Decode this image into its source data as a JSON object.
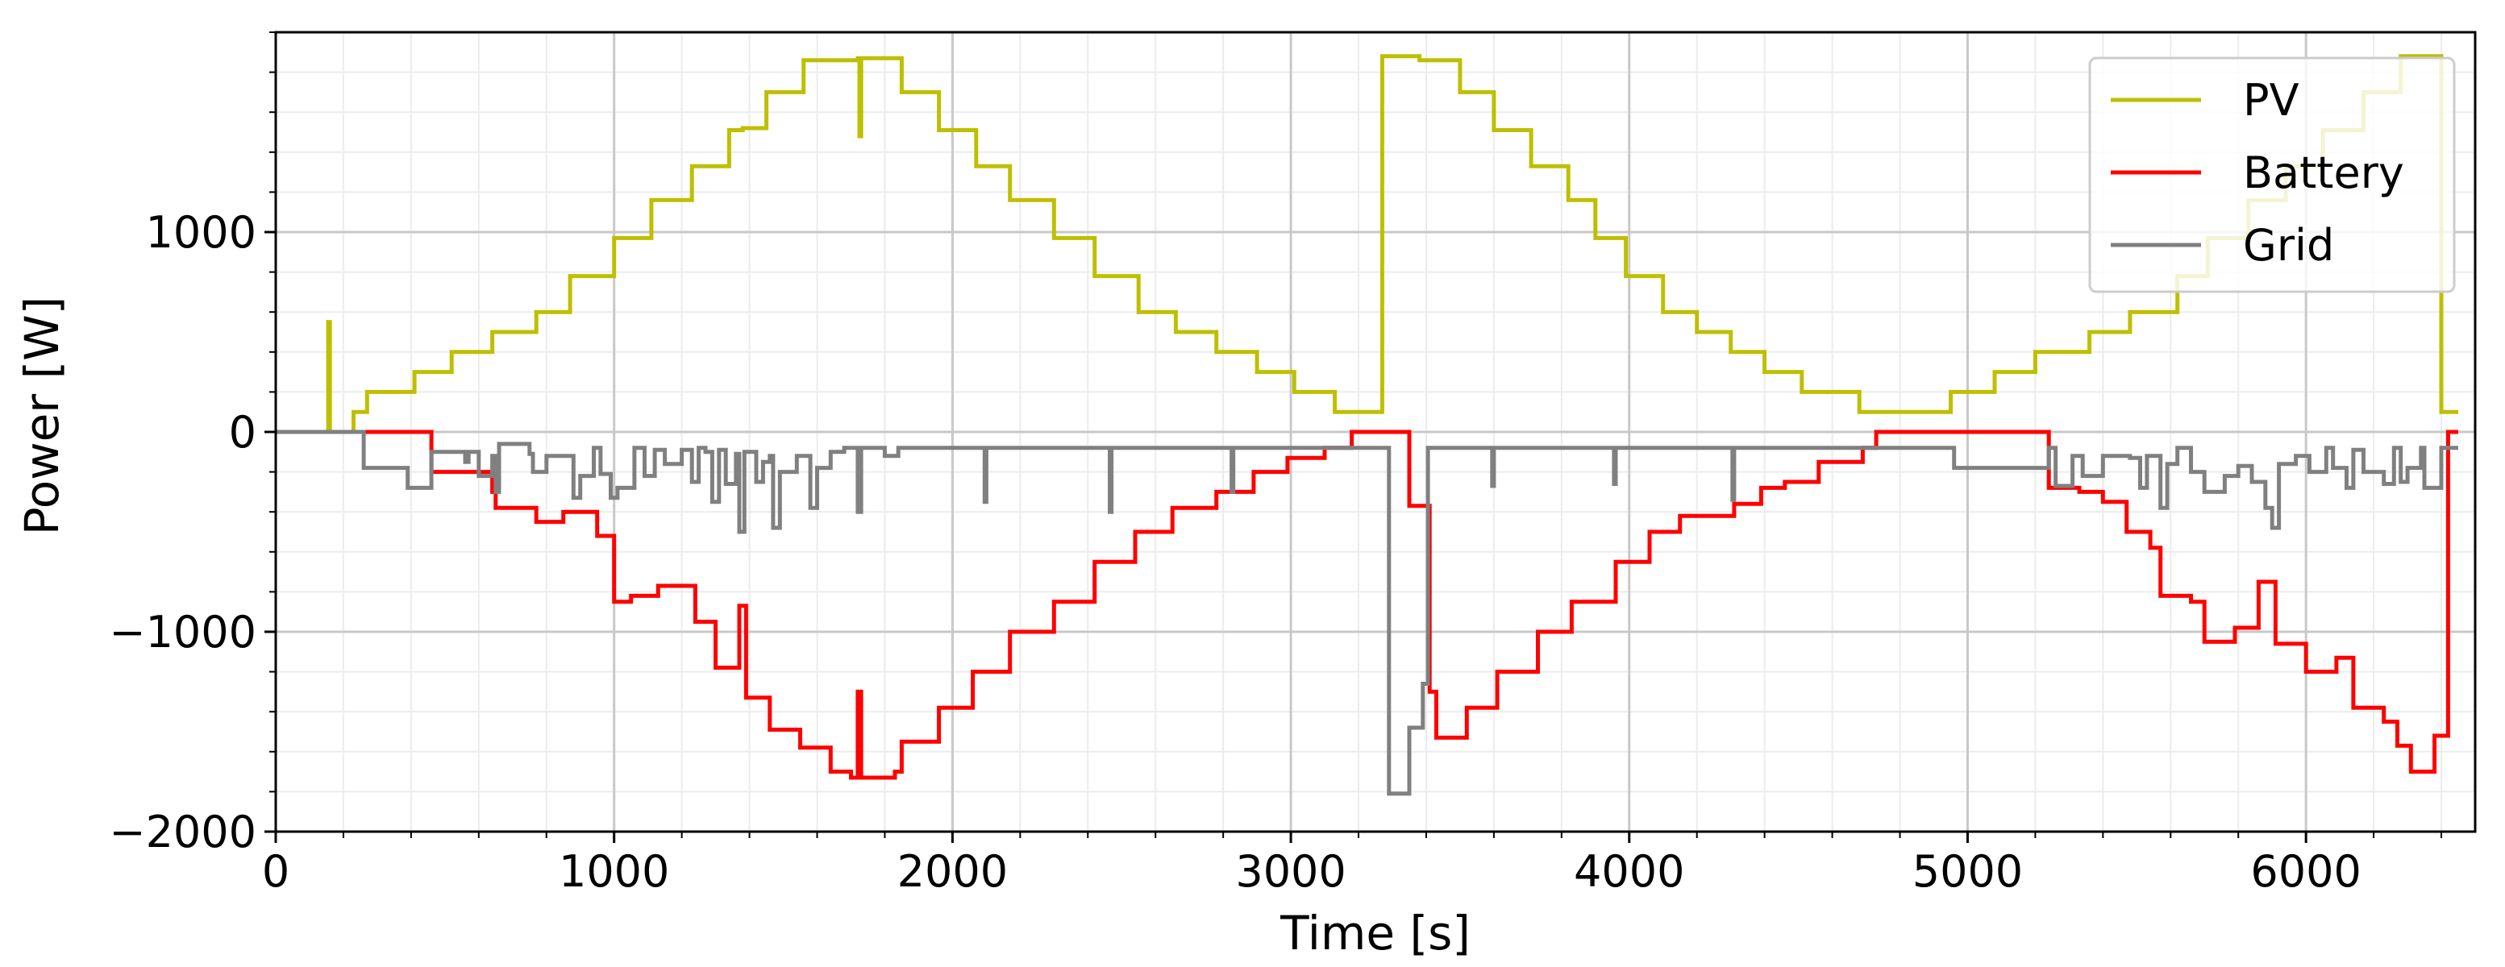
{
  "chart_data": {
    "type": "line",
    "title": "",
    "xlabel": "Time [s]",
    "ylabel": "Power [W]",
    "xlim": [
      0,
      6500
    ],
    "ylim": [
      -2000,
      2000
    ],
    "xticks": [
      0,
      1000,
      2000,
      3000,
      4000,
      5000,
      6000
    ],
    "xtick_labels": [
      "0",
      "1000",
      "2000",
      "3000",
      "4000",
      "5000",
      "6000"
    ],
    "yticks": [
      -2000,
      -1000,
      0,
      1000
    ],
    "ytick_labels": [
      "−2000",
      "−1000",
      "0",
      "1000"
    ],
    "grid": true,
    "minor_grid": true,
    "legend_position": "top-right",
    "step": true,
    "series": [
      {
        "name": "PV",
        "color": "#bfbf00",
        "points": [
          [
            0,
            0
          ],
          [
            150,
            0
          ],
          [
            155,
            550
          ],
          [
            160,
            0
          ],
          [
            230,
            100
          ],
          [
            270,
            200
          ],
          [
            410,
            300
          ],
          [
            520,
            400
          ],
          [
            640,
            500
          ],
          [
            770,
            600
          ],
          [
            870,
            780
          ],
          [
            1000,
            970
          ],
          [
            1110,
            1160
          ],
          [
            1230,
            1330
          ],
          [
            1340,
            1510
          ],
          [
            1380,
            1520
          ],
          [
            1450,
            1700
          ],
          [
            1560,
            1860
          ],
          [
            1720,
            1870
          ],
          [
            1725,
            1480
          ],
          [
            1730,
            1870
          ],
          [
            1850,
            1700
          ],
          [
            1960,
            1510
          ],
          [
            2070,
            1330
          ],
          [
            2170,
            1160
          ],
          [
            2300,
            970
          ],
          [
            2420,
            780
          ],
          [
            2550,
            600
          ],
          [
            2660,
            500
          ],
          [
            2780,
            400
          ],
          [
            2900,
            300
          ],
          [
            3010,
            200
          ],
          [
            3130,
            100
          ],
          [
            3270,
            1880
          ],
          [
            3380,
            1860
          ],
          [
            3500,
            1700
          ],
          [
            3600,
            1510
          ],
          [
            3710,
            1330
          ],
          [
            3820,
            1160
          ],
          [
            3900,
            970
          ],
          [
            3990,
            780
          ],
          [
            4100,
            600
          ],
          [
            4200,
            500
          ],
          [
            4300,
            400
          ],
          [
            4400,
            300
          ],
          [
            4510,
            200
          ],
          [
            4680,
            100
          ],
          [
            4950,
            200
          ],
          [
            5080,
            300
          ],
          [
            5200,
            400
          ],
          [
            5270,
            400
          ],
          [
            5360,
            500
          ],
          [
            5480,
            600
          ],
          [
            5520,
            600
          ],
          [
            5620,
            780
          ],
          [
            5710,
            970
          ],
          [
            5830,
            1160
          ],
          [
            5940,
            1330
          ],
          [
            6050,
            1510
          ],
          [
            6170,
            1700
          ],
          [
            6280,
            1880
          ],
          [
            6400,
            100
          ],
          [
            6450,
            100
          ]
        ]
      },
      {
        "name": "Battery",
        "color": "#ff0000",
        "points": [
          [
            0,
            0
          ],
          [
            440,
            0
          ],
          [
            460,
            -200
          ],
          [
            640,
            -300
          ],
          [
            650,
            -380
          ],
          [
            770,
            -450
          ],
          [
            850,
            -400
          ],
          [
            950,
            -520
          ],
          [
            1000,
            -850
          ],
          [
            1050,
            -820
          ],
          [
            1130,
            -770
          ],
          [
            1240,
            -950
          ],
          [
            1300,
            -1180
          ],
          [
            1370,
            -870
          ],
          [
            1390,
            -1330
          ],
          [
            1460,
            -1490
          ],
          [
            1550,
            -1580
          ],
          [
            1640,
            -1700
          ],
          [
            1700,
            -1730
          ],
          [
            1720,
            -1300
          ],
          [
            1730,
            -1730
          ],
          [
            1830,
            -1700
          ],
          [
            1850,
            -1550
          ],
          [
            1960,
            -1380
          ],
          [
            2060,
            -1200
          ],
          [
            2170,
            -1000
          ],
          [
            2300,
            -850
          ],
          [
            2420,
            -650
          ],
          [
            2540,
            -500
          ],
          [
            2650,
            -380
          ],
          [
            2780,
            -300
          ],
          [
            2890,
            -200
          ],
          [
            2990,
            -130
          ],
          [
            3100,
            -80
          ],
          [
            3180,
            0
          ],
          [
            3320,
            0
          ],
          [
            3350,
            -370
          ],
          [
            3400,
            -370
          ],
          [
            3410,
            -1300
          ],
          [
            3430,
            -1530
          ],
          [
            3520,
            -1380
          ],
          [
            3610,
            -1200
          ],
          [
            3730,
            -1000
          ],
          [
            3830,
            -850
          ],
          [
            3960,
            -650
          ],
          [
            4060,
            -500
          ],
          [
            4150,
            -420
          ],
          [
            4310,
            -360
          ],
          [
            4390,
            -280
          ],
          [
            4460,
            -250
          ],
          [
            4560,
            -150
          ],
          [
            4690,
            -80
          ],
          [
            4730,
            0
          ],
          [
            5170,
            0
          ],
          [
            5240,
            -280
          ],
          [
            5330,
            -300
          ],
          [
            5400,
            -350
          ],
          [
            5470,
            -500
          ],
          [
            5540,
            -580
          ],
          [
            5570,
            -820
          ],
          [
            5660,
            -850
          ],
          [
            5700,
            -1050
          ],
          [
            5790,
            -980
          ],
          [
            5860,
            -750
          ],
          [
            5910,
            -1060
          ],
          [
            6000,
            -1200
          ],
          [
            6090,
            -1130
          ],
          [
            6140,
            -1380
          ],
          [
            6230,
            -1450
          ],
          [
            6270,
            -1570
          ],
          [
            6310,
            -1700
          ],
          [
            6380,
            -1520
          ],
          [
            6420,
            0
          ],
          [
            6450,
            0
          ]
        ]
      },
      {
        "name": "Grid",
        "color": "#808080",
        "points": [
          [
            0,
            0
          ],
          [
            240,
            0
          ],
          [
            260,
            -180
          ],
          [
            380,
            -180
          ],
          [
            390,
            -280
          ],
          [
            440,
            -280
          ],
          [
            460,
            -100
          ],
          [
            560,
            -150
          ],
          [
            570,
            -100
          ],
          [
            600,
            -220
          ],
          [
            640,
            -120
          ],
          [
            650,
            -300
          ],
          [
            660,
            -60
          ],
          [
            750,
            -110
          ],
          [
            760,
            -200
          ],
          [
            800,
            -120
          ],
          [
            850,
            -120
          ],
          [
            880,
            -330
          ],
          [
            900,
            -220
          ],
          [
            940,
            -80
          ],
          [
            960,
            -210
          ],
          [
            990,
            -330
          ],
          [
            1010,
            -280
          ],
          [
            1060,
            -80
          ],
          [
            1090,
            -220
          ],
          [
            1120,
            -90
          ],
          [
            1150,
            -160
          ],
          [
            1200,
            -90
          ],
          [
            1230,
            -250
          ],
          [
            1250,
            -80
          ],
          [
            1270,
            -100
          ],
          [
            1290,
            -350
          ],
          [
            1310,
            -90
          ],
          [
            1330,
            -260
          ],
          [
            1360,
            -110
          ],
          [
            1370,
            -500
          ],
          [
            1385,
            -100
          ],
          [
            1420,
            -250
          ],
          [
            1440,
            -150
          ],
          [
            1460,
            -120
          ],
          [
            1470,
            -480
          ],
          [
            1490,
            -200
          ],
          [
            1540,
            -120
          ],
          [
            1580,
            -380
          ],
          [
            1600,
            -180
          ],
          [
            1640,
            -100
          ],
          [
            1680,
            -80
          ],
          [
            1720,
            -400
          ],
          [
            1730,
            -80
          ],
          [
            1800,
            -120
          ],
          [
            1840,
            -80
          ],
          [
            2090,
            -80
          ],
          [
            2095,
            -350
          ],
          [
            2100,
            -80
          ],
          [
            2460,
            -80
          ],
          [
            2465,
            -400
          ],
          [
            2470,
            -80
          ],
          [
            2820,
            -80
          ],
          [
            2825,
            -300
          ],
          [
            2830,
            -80
          ],
          [
            3250,
            -80
          ],
          [
            3290,
            -1810
          ],
          [
            3350,
            -1480
          ],
          [
            3390,
            -1260
          ],
          [
            3405,
            -80
          ],
          [
            3420,
            -80
          ],
          [
            3590,
            -80
          ],
          [
            3595,
            -270
          ],
          [
            3600,
            -80
          ],
          [
            3950,
            -80
          ],
          [
            3955,
            -260
          ],
          [
            3960,
            -80
          ],
          [
            4300,
            -80
          ],
          [
            4305,
            -340
          ],
          [
            4310,
            -80
          ],
          [
            4930,
            -80
          ],
          [
            4960,
            -180
          ],
          [
            5140,
            -180
          ],
          [
            5240,
            -80
          ],
          [
            5260,
            -270
          ],
          [
            5310,
            -120
          ],
          [
            5340,
            -220
          ],
          [
            5400,
            -120
          ],
          [
            5480,
            -130
          ],
          [
            5510,
            -280
          ],
          [
            5530,
            -120
          ],
          [
            5570,
            -380
          ],
          [
            5590,
            -160
          ],
          [
            5620,
            -80
          ],
          [
            5660,
            -200
          ],
          [
            5700,
            -300
          ],
          [
            5760,
            -220
          ],
          [
            5800,
            -170
          ],
          [
            5840,
            -250
          ],
          [
            5880,
            -380
          ],
          [
            5900,
            -480
          ],
          [
            5920,
            -160
          ],
          [
            5970,
            -120
          ],
          [
            6010,
            -200
          ],
          [
            6060,
            -80
          ],
          [
            6080,
            -180
          ],
          [
            6120,
            -280
          ],
          [
            6140,
            -90
          ],
          [
            6170,
            -200
          ],
          [
            6230,
            -260
          ],
          [
            6260,
            -80
          ],
          [
            6280,
            -250
          ],
          [
            6300,
            -180
          ],
          [
            6340,
            -80
          ],
          [
            6350,
            -280
          ],
          [
            6400,
            -80
          ],
          [
            6450,
            -80
          ]
        ]
      }
    ]
  }
}
